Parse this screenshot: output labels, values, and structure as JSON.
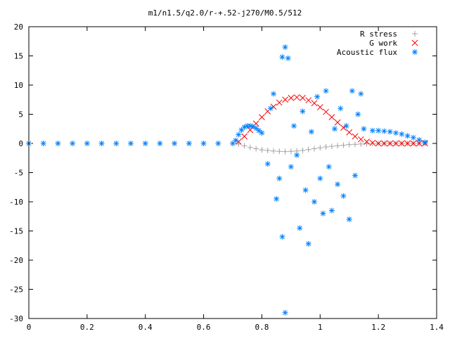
{
  "chart_data": {
    "type": "scatter",
    "title": "m1/n1.5/q2.0/r-+.52-j270/M0.5/512",
    "xlabel": "",
    "ylabel": "",
    "xlim": [
      0,
      1.4
    ],
    "ylim": [
      -30,
      20
    ],
    "x_ticks": [
      0,
      0.2,
      0.4,
      0.6,
      0.8,
      1,
      1.2,
      1.4
    ],
    "x_tick_labels": [
      "0",
      "0.2",
      "0.4",
      "0.6",
      "0.8",
      "1",
      "1.2",
      "1.4"
    ],
    "y_ticks": [
      -30,
      -25,
      -20,
      -15,
      -10,
      -5,
      0,
      5,
      10,
      15,
      20
    ],
    "y_tick_labels": [
      "-30",
      "-25",
      "-20",
      "-15",
      "-10",
      "-5",
      "0",
      "5",
      "10",
      "15",
      "20"
    ],
    "grid": false,
    "legend_position": "top-right",
    "series": [
      {
        "name": "R stress",
        "marker": "plus",
        "color": "#a0a0a0",
        "x": [
          0.72,
          0.74,
          0.76,
          0.78,
          0.8,
          0.82,
          0.84,
          0.86,
          0.88,
          0.9,
          0.92,
          0.94,
          0.96,
          0.98,
          1.0,
          1.02,
          1.04,
          1.06,
          1.08,
          1.1,
          1.12,
          1.14,
          1.16,
          1.18,
          1.2,
          1.22,
          1.24,
          1.26,
          1.28,
          1.3,
          1.32,
          1.34,
          1.36
        ],
        "y": [
          -0.1,
          -0.4,
          -0.7,
          -0.9,
          -1.1,
          -1.2,
          -1.3,
          -1.35,
          -1.4,
          -1.35,
          -1.3,
          -1.2,
          -1.05,
          -0.9,
          -0.75,
          -0.6,
          -0.5,
          -0.4,
          -0.3,
          -0.2,
          -0.15,
          -0.1,
          -0.05,
          0.0,
          0.0,
          0.0,
          0.0,
          0.0,
          0.0,
          0.0,
          0.0,
          0.0,
          0.0
        ]
      },
      {
        "name": "G work",
        "marker": "cross",
        "color": "#ff0000",
        "x": [
          0.72,
          0.74,
          0.76,
          0.78,
          0.8,
          0.82,
          0.84,
          0.86,
          0.88,
          0.9,
          0.92,
          0.94,
          0.96,
          0.98,
          1.0,
          1.02,
          1.04,
          1.06,
          1.08,
          1.1,
          1.12,
          1.14,
          1.16,
          1.18,
          1.2,
          1.22,
          1.24,
          1.26,
          1.28,
          1.3,
          1.32,
          1.34,
          1.36
        ],
        "y": [
          0.3,
          1.2,
          2.3,
          3.4,
          4.5,
          5.5,
          6.3,
          7.0,
          7.5,
          7.8,
          7.9,
          7.8,
          7.4,
          6.9,
          6.2,
          5.4,
          4.5,
          3.6,
          2.7,
          1.9,
          1.2,
          0.7,
          0.3,
          0.1,
          0.0,
          0.0,
          0.0,
          0.0,
          0.0,
          0.0,
          0.0,
          0.0,
          0.0
        ]
      },
      {
        "name": "Acoustic flux",
        "marker": "star",
        "color": "#0080ff",
        "x": [
          0.0,
          0.05,
          0.1,
          0.15,
          0.2,
          0.25,
          0.3,
          0.35,
          0.4,
          0.45,
          0.5,
          0.55,
          0.6,
          0.65,
          0.7,
          0.71,
          0.72,
          0.73,
          0.74,
          0.75,
          0.76,
          0.77,
          0.78,
          0.79,
          0.8,
          0.82,
          0.83,
          0.84,
          0.85,
          0.86,
          0.87,
          0.87,
          0.88,
          0.88,
          0.89,
          0.9,
          0.91,
          0.92,
          0.93,
          0.94,
          0.95,
          0.96,
          0.97,
          0.98,
          0.99,
          1.0,
          1.01,
          1.02,
          1.03,
          1.04,
          1.05,
          1.06,
          1.07,
          1.08,
          1.09,
          1.1,
          1.11,
          1.12,
          1.13,
          1.14,
          1.15,
          1.18,
          1.2,
          1.22,
          1.24,
          1.26,
          1.28,
          1.3,
          1.32,
          1.34,
          1.36
        ],
        "y": [
          0.0,
          0.0,
          0.0,
          0.0,
          0.0,
          0.0,
          0.0,
          0.0,
          0.0,
          0.0,
          0.0,
          0.0,
          0.0,
          0.0,
          0.0,
          0.5,
          1.5,
          2.3,
          2.8,
          3.0,
          3.0,
          2.9,
          2.6,
          2.2,
          1.8,
          -3.5,
          6.0,
          8.5,
          -9.5,
          -6.0,
          14.8,
          -16.0,
          16.5,
          -29.0,
          14.6,
          -4.0,
          3.0,
          -2.0,
          -14.5,
          5.5,
          -8.0,
          -17.2,
          2.0,
          -10.0,
          8.0,
          -6.0,
          -12.0,
          9.0,
          -4.0,
          -11.5,
          2.5,
          -7.0,
          6.0,
          -9.0,
          3.0,
          -13.0,
          9.0,
          -5.5,
          5.0,
          8.5,
          2.5,
          2.2,
          2.2,
          2.1,
          2.0,
          1.8,
          1.6,
          1.3,
          1.0,
          0.6,
          0.2
        ]
      }
    ]
  }
}
